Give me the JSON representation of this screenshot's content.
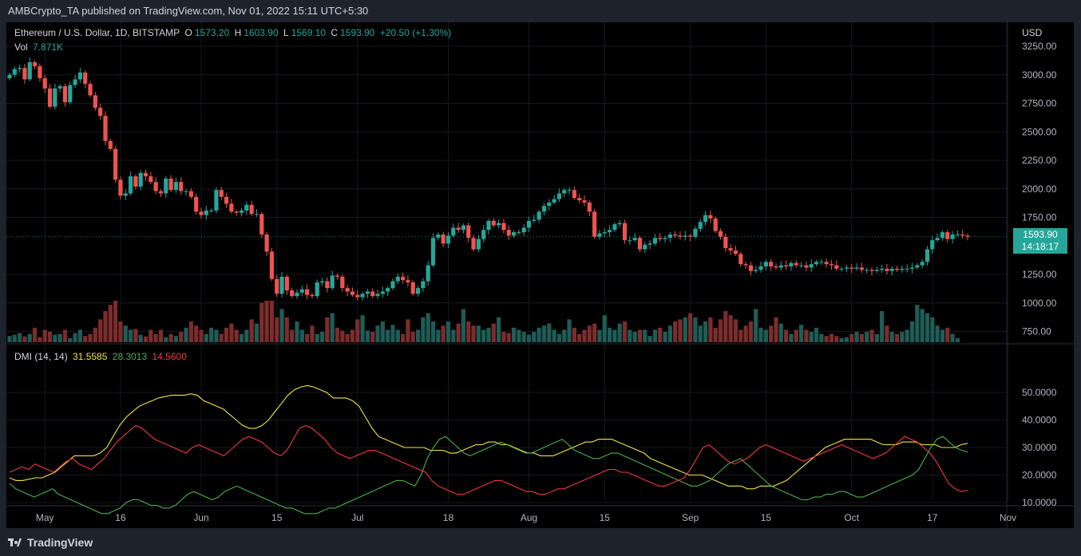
{
  "header": {
    "published": "AMBCrypto_TA published on TradingView.com, Nov 01, 2022 15:11 UTC+5:30"
  },
  "legend": {
    "symbol": "Ethereum / U.S. Dollar, 1D, BITSTAMP",
    "o_label": "O",
    "o_value": "1573.20",
    "h_label": "H",
    "h_value": "1603.90",
    "l_label": "L",
    "l_value": "1569.10",
    "c_label": "C",
    "c_value": "1593.90",
    "change": "+20.50 (+1.30%)",
    "vol_label": "Vol",
    "vol_value": "7.871K",
    "dmi_label": "DMI (14, 14)",
    "dmi_adx": "31.5585",
    "dmi_plus": "28.3013",
    "dmi_minus": "14.5600"
  },
  "price_tag": {
    "price": "1593.90",
    "countdown": "14:18:17"
  },
  "footer": {
    "brand": "TradingView"
  },
  "colors": {
    "up": "#26a69a",
    "down": "#ef5350",
    "vol_up": "#1f5c57",
    "vol_down": "#7b2d2c",
    "adx": "#f2e442",
    "plus_di": "#4caf50",
    "minus_di": "#f23645"
  },
  "chart_data": [
    {
      "type": "candlestick",
      "currency": "USD",
      "y_ticks": [
        "3250.00",
        "3000.00",
        "2750.00",
        "2500.00",
        "2250.00",
        "2000.00",
        "1750.00",
        "1250.00",
        "1000.00",
        "750.00"
      ],
      "y_tick_values": [
        3250,
        3000,
        2750,
        2500,
        2250,
        2000,
        1750,
        1250,
        1000,
        750
      ],
      "x_ticks": [
        "May",
        "16",
        "Jun",
        "15",
        "Jul",
        "18",
        "Aug",
        "15",
        "Sep",
        "15",
        "Oct",
        "17",
        "Nov"
      ],
      "x_tick_days": [
        7,
        22,
        38,
        53,
        69,
        87,
        103,
        118,
        135,
        150,
        167,
        183,
        198
      ],
      "start_date": "2022-04-24",
      "close": [
        3000,
        3050,
        3060,
        2960,
        3110,
        3075,
        2970,
        2880,
        2720,
        2880,
        2900,
        2760,
        2910,
        2960,
        3020,
        2920,
        2820,
        2710,
        2640,
        2420,
        2350,
        2080,
        1940,
        1960,
        2110,
        2020,
        2140,
        2110,
        2060,
        1980,
        1960,
        2090,
        1990,
        2060,
        1980,
        1980,
        1930,
        1800,
        1770,
        1810,
        1810,
        1990,
        1930,
        1870,
        1800,
        1790,
        1810,
        1860,
        1780,
        1780,
        1600,
        1450,
        1210,
        1080,
        1230,
        1110,
        1060,
        1090,
        1120,
        1070,
        1060,
        1180,
        1190,
        1130,
        1240,
        1230,
        1130,
        1100,
        1070,
        1050,
        1080,
        1100,
        1060,
        1080,
        1100,
        1130,
        1190,
        1230,
        1200,
        1180,
        1080,
        1130,
        1190,
        1330,
        1570,
        1600,
        1520,
        1590,
        1660,
        1640,
        1680,
        1570,
        1470,
        1560,
        1640,
        1720,
        1680,
        1700,
        1640,
        1590,
        1620,
        1620,
        1660,
        1720,
        1730,
        1800,
        1850,
        1880,
        1910,
        1960,
        1990,
        1990,
        1920,
        1900,
        1880,
        1800,
        1580,
        1610,
        1620,
        1640,
        1690,
        1700,
        1550,
        1550,
        1570,
        1470,
        1510,
        1520,
        1570,
        1560,
        1570,
        1600,
        1590,
        1580,
        1590,
        1580,
        1650,
        1710,
        1770,
        1740,
        1630,
        1580,
        1480,
        1460,
        1430,
        1340,
        1330,
        1280,
        1290,
        1320,
        1360,
        1320,
        1310,
        1330,
        1320,
        1350,
        1330,
        1330,
        1310,
        1340,
        1360,
        1360,
        1340,
        1330,
        1300,
        1300,
        1310,
        1300,
        1310,
        1290,
        1290,
        1280,
        1290,
        1300,
        1280,
        1300,
        1290,
        1300,
        1300,
        1310,
        1330,
        1360,
        1470,
        1550,
        1570,
        1620,
        1560,
        1600,
        1600,
        1590,
        1580
      ],
      "open_from_prev": true,
      "volume_relative": [
        0.15,
        0.18,
        0.22,
        0.14,
        0.2,
        0.35,
        0.12,
        0.3,
        0.25,
        0.18,
        0.2,
        0.3,
        0.1,
        0.22,
        0.3,
        0.15,
        0.2,
        0.35,
        0.55,
        0.75,
        0.9,
        1.0,
        0.5,
        0.4,
        0.3,
        0.32,
        0.18,
        0.14,
        0.3,
        0.2,
        0.3,
        0.12,
        0.2,
        0.15,
        0.25,
        0.35,
        0.5,
        0.4,
        0.3,
        0.2,
        0.35,
        0.3,
        0.2,
        0.35,
        0.45,
        0.3,
        0.2,
        0.3,
        0.55,
        0.45,
        0.95,
        1.0,
        1.0,
        0.6,
        0.8,
        0.6,
        0.3,
        0.5,
        0.3,
        0.2,
        0.4,
        0.2,
        0.25,
        0.6,
        0.7,
        0.35,
        0.28,
        0.2,
        0.3,
        0.55,
        0.65,
        0.28,
        0.25,
        0.4,
        0.5,
        0.3,
        0.42,
        0.3,
        0.2,
        0.55,
        0.25,
        0.3,
        0.6,
        0.7,
        0.5,
        0.3,
        0.4,
        0.5,
        0.3,
        0.45,
        0.8,
        0.5,
        0.4,
        0.4,
        0.3,
        0.35,
        0.45,
        0.6,
        0.25,
        0.22,
        0.35,
        0.3,
        0.25,
        0.18,
        0.25,
        0.35,
        0.4,
        0.45,
        0.3,
        0.2,
        0.3,
        0.55,
        0.35,
        0.2,
        0.3,
        0.4,
        0.45,
        0.3,
        0.65,
        0.35,
        0.3,
        0.45,
        0.5,
        0.3,
        0.25,
        0.3,
        0.3,
        0.15,
        0.3,
        0.35,
        0.25,
        0.4,
        0.5,
        0.55,
        0.6,
        0.7,
        0.6,
        0.4,
        0.5,
        0.6,
        0.35,
        0.55,
        0.75,
        0.65,
        0.55,
        0.3,
        0.4,
        0.5,
        0.8,
        0.35,
        0.3,
        0.4,
        0.6,
        0.45,
        0.3,
        0.2,
        0.3,
        0.42,
        0.3,
        0.25,
        0.35,
        0.2,
        0.15,
        0.2,
        0.15,
        0.1,
        0.12,
        0.2,
        0.25,
        0.2,
        0.25,
        0.3,
        0.2,
        0.75,
        0.4,
        0.25,
        0.2,
        0.25,
        0.3,
        0.5,
        0.9,
        0.8,
        0.7,
        0.6,
        0.4,
        0.3,
        0.35,
        0.2,
        0.1
      ]
    },
    {
      "type": "line",
      "title": "DMI (14, 14)",
      "y_ticks": [
        "50.0000",
        "40.0000",
        "30.0000",
        "20.0000",
        "10.0000"
      ],
      "y_tick_values": [
        50,
        40,
        30,
        20,
        10
      ],
      "ylim": [
        0,
        58
      ],
      "series": [
        {
          "name": "ADX",
          "color": "#f2e442",
          "values": [
            19,
            18,
            18,
            18.5,
            19,
            19,
            20,
            21,
            23,
            25,
            27,
            27,
            27,
            27,
            28,
            30,
            34,
            38,
            41,
            43,
            45,
            46,
            47,
            48,
            48.5,
            49,
            49,
            49,
            49.5,
            49,
            47,
            46,
            45,
            44,
            42,
            40,
            38,
            37,
            37,
            38,
            40,
            43,
            46,
            49,
            51,
            52,
            52.5,
            52,
            51,
            50,
            48,
            48,
            48,
            47,
            45,
            41,
            37,
            34,
            33,
            32,
            31,
            30,
            30,
            30,
            30,
            29,
            29,
            29,
            28,
            28,
            29,
            30,
            31,
            31,
            32,
            32,
            31,
            31,
            30,
            29,
            28,
            28,
            27,
            27,
            27,
            28,
            29,
            30,
            31,
            32,
            32,
            33,
            33,
            33,
            32,
            31,
            30,
            29,
            28,
            26,
            25,
            24,
            23,
            22,
            21,
            20,
            20,
            20,
            19,
            18,
            17,
            16,
            16,
            16,
            15,
            15,
            16,
            16,
            16,
            17,
            18,
            20,
            22,
            24,
            26,
            28,
            30,
            31,
            32,
            33,
            33,
            33,
            33,
            33,
            32,
            31,
            31,
            31,
            32,
            32,
            32,
            31,
            31,
            31,
            30,
            30,
            30,
            31,
            31.5
          ]
        },
        {
          "name": "+DI",
          "color": "#4caf50",
          "values": [
            17,
            15,
            14,
            13,
            12,
            13,
            14,
            15,
            13,
            12,
            11,
            10,
            9,
            8,
            7,
            6,
            6,
            7,
            8,
            10,
            11,
            11,
            10,
            9,
            9,
            8,
            8,
            9,
            11,
            13,
            14,
            13,
            12,
            11,
            12,
            14,
            15,
            16,
            15,
            14,
            13,
            12,
            11,
            10,
            9,
            8,
            8,
            7,
            6,
            6,
            6,
            7,
            8,
            8,
            9,
            10,
            11,
            12,
            13,
            14,
            15,
            16,
            17,
            18,
            18,
            17,
            16,
            20,
            26,
            30,
            33,
            34,
            32,
            30,
            28,
            27,
            28,
            29,
            30,
            31,
            32,
            31,
            30,
            29,
            28,
            28,
            29,
            30,
            31,
            32,
            33,
            31,
            29,
            28,
            27,
            26,
            26,
            27,
            28,
            28,
            27,
            26,
            25,
            24,
            23,
            22,
            21,
            20,
            19,
            18,
            17,
            16,
            16,
            17,
            18,
            20,
            22,
            24,
            25,
            26,
            24,
            22,
            20,
            18,
            16,
            15,
            14,
            13,
            12,
            11,
            11,
            12,
            12,
            13,
            13,
            14,
            14,
            13,
            12,
            12,
            13,
            14,
            15,
            16,
            17,
            18,
            19,
            20,
            22,
            26,
            30,
            33,
            34,
            32,
            30,
            29,
            28.3
          ]
        },
        {
          "name": "-DI",
          "color": "#f23645",
          "values": [
            21,
            22,
            23,
            22,
            24,
            23,
            22,
            21,
            23,
            25,
            26,
            24,
            23,
            22,
            24,
            26,
            29,
            32,
            34,
            36,
            38,
            37,
            35,
            33,
            32,
            31,
            30,
            29,
            28,
            30,
            31,
            30,
            29,
            28,
            27,
            29,
            31,
            33,
            34,
            33,
            32,
            30,
            28,
            27,
            29,
            33,
            37,
            38,
            37,
            35,
            33,
            30,
            28,
            27,
            26,
            27,
            28,
            29,
            29,
            28,
            27,
            26,
            25,
            24,
            23,
            22,
            21,
            18,
            16,
            15,
            14,
            13,
            13,
            14,
            15,
            16,
            17,
            18,
            18,
            17,
            16,
            15,
            14,
            14,
            13,
            13,
            14,
            15,
            15,
            16,
            17,
            18,
            19,
            20,
            21,
            22,
            22,
            21,
            21,
            20,
            19,
            18,
            17,
            16,
            16,
            17,
            18,
            19,
            22,
            26,
            30,
            31,
            29,
            27,
            25,
            24,
            25,
            26,
            28,
            30,
            31,
            30,
            29,
            28,
            27,
            26,
            25,
            26,
            27,
            28,
            29,
            30,
            31,
            30,
            29,
            28,
            27,
            26,
            27,
            28,
            30,
            32,
            34,
            33,
            32,
            30,
            28,
            25,
            21,
            17,
            15,
            14,
            14.5
          ]
        }
      ]
    }
  ]
}
